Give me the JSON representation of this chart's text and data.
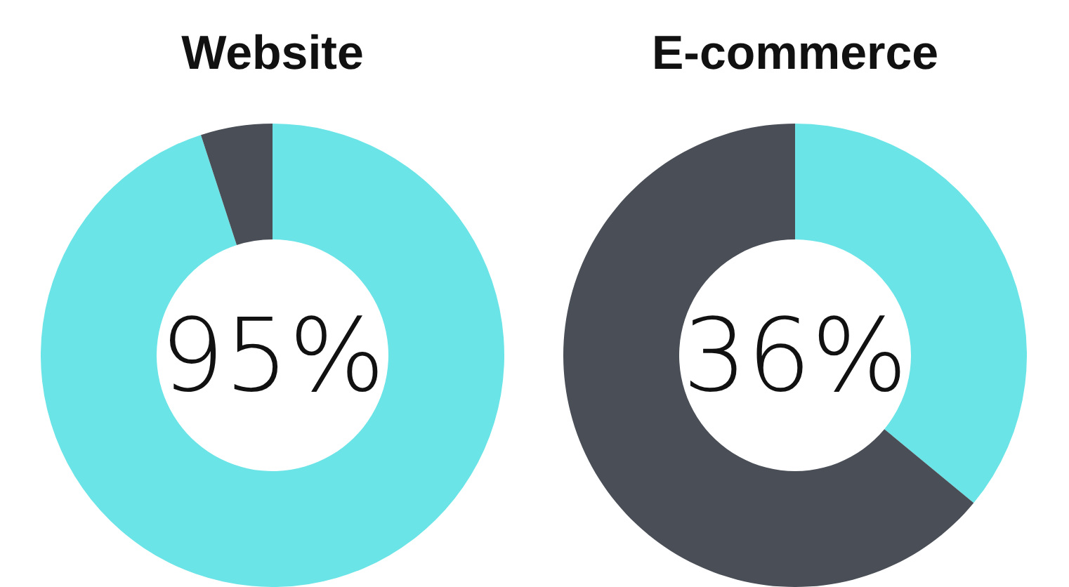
{
  "chart_data": [
    {
      "type": "donut",
      "title": "Website",
      "categories": [
        null,
        null
      ],
      "values": [
        95,
        5
      ],
      "colors": [
        "#6ae4e6",
        "#4a4f57"
      ],
      "value_labels": [
        "95%",
        null
      ]
    },
    {
      "type": "donut",
      "title": "E-commerce",
      "categories": [
        null,
        null
      ],
      "values": [
        36,
        64
      ],
      "colors": [
        "#6ae4e6",
        "#4a4f57"
      ],
      "value_labels": [
        "36%",
        null
      ]
    }
  ]
}
